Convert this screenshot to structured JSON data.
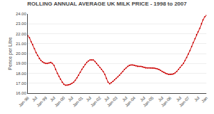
{
  "chart_data": {
    "type": "line",
    "title": "ROLLING ANNUAL AVERAGE UK MILK PRICE - 1998 to 2007",
    "ylabel": "Pence per Litre",
    "color": "#cc0000",
    "marker": "circle",
    "grid": true,
    "ylim": [
      16.0,
      24.0
    ],
    "yticks": [
      {
        "value": 16.0,
        "label": "16.00"
      },
      {
        "value": 17.0,
        "label": "17.00"
      },
      {
        "value": 18.0,
        "label": "18.00"
      },
      {
        "value": 19.0,
        "label": "19.00"
      },
      {
        "value": 20.0,
        "label": "20.00"
      },
      {
        "value": 21.0,
        "label": "21.00"
      },
      {
        "value": 22.0,
        "label": "22.00"
      },
      {
        "value": 23.0,
        "label": "23.00"
      },
      {
        "value": 24.0,
        "label": "24.00"
      }
    ],
    "categories": [
      "Jan-98",
      null,
      null,
      null,
      null,
      "Jul",
      null,
      null,
      null,
      null,
      null,
      "Jan-99",
      null,
      null,
      null,
      null,
      "Jul",
      null,
      null,
      null,
      null,
      null,
      "Jan-00",
      null,
      null,
      null,
      null,
      "Jul",
      null,
      null,
      null,
      null,
      null,
      "Jan-01",
      null,
      null,
      null,
      null,
      "Jul",
      null,
      null,
      null,
      null,
      null,
      "Jan-02",
      null,
      null,
      null,
      null,
      "Jul",
      null,
      null,
      null,
      null,
      "Jan-03",
      null,
      null,
      null,
      null,
      null,
      "Jul",
      null,
      null,
      null,
      null,
      "Jan-04",
      null,
      null,
      null,
      null,
      null,
      "Jul",
      null,
      null,
      null,
      null,
      "Jan-05",
      null,
      null,
      null,
      null,
      null,
      "Jul",
      null,
      null,
      null,
      null,
      "Jan-06",
      null,
      null,
      null,
      null,
      null,
      "Jul",
      null,
      null,
      null,
      null,
      "Jan-07",
      null,
      null,
      null,
      null,
      null,
      "Jul",
      null,
      null,
      null,
      null,
      "Jan"
    ],
    "values": [
      21.8,
      21.6,
      21.2,
      20.9,
      20.5,
      20.1,
      19.8,
      19.5,
      19.3,
      19.15,
      19.05,
      19.0,
      19.0,
      19.05,
      19.1,
      19.0,
      18.8,
      18.4,
      18.0,
      17.7,
      17.4,
      17.1,
      16.9,
      16.8,
      16.8,
      16.85,
      16.9,
      17.0,
      17.1,
      17.3,
      17.55,
      17.8,
      18.1,
      18.4,
      18.65,
      18.9,
      19.1,
      19.25,
      19.35,
      19.35,
      19.35,
      19.2,
      19.0,
      18.8,
      18.6,
      18.4,
      18.2,
      17.9,
      17.5,
      17.1,
      16.95,
      17.05,
      17.2,
      17.35,
      17.5,
      17.65,
      17.8,
      18.0,
      18.2,
      18.4,
      18.55,
      18.7,
      18.8,
      18.85,
      18.85,
      18.8,
      18.75,
      18.7,
      18.7,
      18.7,
      18.65,
      18.6,
      18.55,
      18.55,
      18.55,
      18.55,
      18.55,
      18.55,
      18.5,
      18.45,
      18.4,
      18.3,
      18.2,
      18.1,
      18.0,
      17.95,
      17.9,
      17.9,
      17.9,
      17.95,
      18.05,
      18.2,
      18.4,
      18.6,
      18.8,
      19.0,
      19.3,
      19.6,
      19.95,
      20.3,
      20.7,
      21.1,
      21.5,
      21.9,
      22.2,
      22.55,
      23.0,
      23.4,
      23.7,
      23.85
    ]
  }
}
